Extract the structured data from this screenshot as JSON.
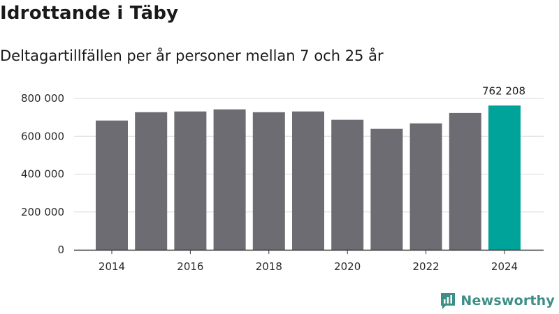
{
  "header": {
    "title": "Idrottande i Täby",
    "subtitle": "Deltagartillfällen per år personer mellan 7 och 25 år"
  },
  "brand": {
    "name": "Newsworthy"
  },
  "colors": {
    "bar": "#6d6c72",
    "highlight": "#00a39a",
    "grid": "#d9d9d9",
    "axis": "#333333",
    "brand": "#3d8f86"
  },
  "chart_data": {
    "type": "bar",
    "title": "Idrottande i Täby",
    "subtitle": "Deltagartillfällen per år personer mellan 7 och 25 år",
    "xlabel": "",
    "ylabel": "",
    "categories": [
      "2014",
      "2015",
      "2016",
      "2017",
      "2018",
      "2019",
      "2020",
      "2021",
      "2022",
      "2023",
      "2024"
    ],
    "values": [
      683000,
      727000,
      731000,
      742000,
      727000,
      731000,
      687000,
      639000,
      668000,
      723000,
      762208
    ],
    "highlight_index": 10,
    "highlight_label": "762 208",
    "ylim": [
      0,
      800000
    ],
    "yticks": [
      0,
      200000,
      400000,
      600000,
      800000
    ],
    "ytick_labels": [
      "0",
      "200 000",
      "400 000",
      "600 000",
      "800 000"
    ],
    "xtick_labels": [
      "2014",
      "2016",
      "2018",
      "2020",
      "2022",
      "2024"
    ],
    "grid": true
  }
}
